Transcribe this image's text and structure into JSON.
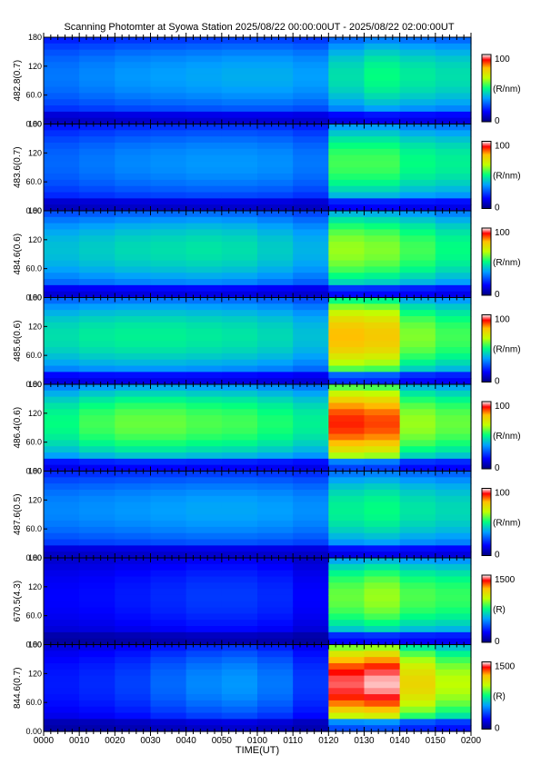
{
  "title": "Scanning Photomter at Syowa Station 2025/08/22 00:00:00UT - 2025/08/22 02:00:00UT",
  "chart_data": {
    "type": "heatmap",
    "xlabel": "TIME(UT)",
    "xticks": [
      "0000",
      "0010",
      "0020",
      "0030",
      "0040",
      "0050",
      "0100",
      "0110",
      "0120",
      "0130",
      "0140",
      "0150",
      "0200"
    ],
    "xlim": [
      0,
      120
    ],
    "yticks": [
      "0.00",
      "60.0",
      "120",
      "180"
    ],
    "ylim": [
      0,
      180
    ],
    "panels": [
      {
        "label": "482.8(0.7)",
        "cbar_max": "100",
        "cbar_min": "0",
        "cbar_unit": "(R/nm)",
        "intensity": [
          0.3,
          0.32,
          0.34,
          0.35,
          0.36,
          0.37,
          0.37,
          0.35,
          0.45,
          0.5,
          0.47,
          0.45
        ]
      },
      {
        "label": "483.6(0.7)",
        "cbar_max": "100",
        "cbar_min": "0",
        "cbar_unit": "(R/nm)",
        "intensity": [
          0.28,
          0.3,
          0.32,
          0.33,
          0.34,
          0.34,
          0.33,
          0.3,
          0.55,
          0.55,
          0.5,
          0.48
        ]
      },
      {
        "label": "484.6(0.6)",
        "cbar_max": "100",
        "cbar_min": "0",
        "cbar_unit": "(R/nm)",
        "intensity": [
          0.4,
          0.42,
          0.44,
          0.45,
          0.46,
          0.45,
          0.42,
          0.38,
          0.62,
          0.6,
          0.55,
          0.5
        ]
      },
      {
        "label": "485.6(0.6)",
        "cbar_max": "100",
        "cbar_min": "0",
        "cbar_unit": "(R/nm)",
        "intensity": [
          0.45,
          0.47,
          0.48,
          0.48,
          0.47,
          0.46,
          0.44,
          0.4,
          0.8,
          0.78,
          0.6,
          0.55
        ]
      },
      {
        "label": "486.4(0.6)",
        "cbar_max": "100",
        "cbar_min": "0",
        "cbar_unit": "(R/nm)",
        "intensity": [
          0.5,
          0.55,
          0.58,
          0.58,
          0.56,
          0.55,
          0.52,
          0.48,
          0.9,
          0.88,
          0.62,
          0.58
        ]
      },
      {
        "label": "487.6(0.5)",
        "cbar_max": "100",
        "cbar_min": "0",
        "cbar_unit": "(R/nm)",
        "intensity": [
          0.32,
          0.33,
          0.34,
          0.35,
          0.36,
          0.36,
          0.35,
          0.33,
          0.48,
          0.5,
          0.46,
          0.44
        ]
      },
      {
        "label": "670.5(4.3)",
        "cbar_max": "1500",
        "cbar_min": "0",
        "cbar_unit": "(R)",
        "intensity": [
          0.15,
          0.16,
          0.18,
          0.2,
          0.22,
          0.22,
          0.2,
          0.15,
          0.58,
          0.62,
          0.56,
          0.54
        ]
      },
      {
        "label": "844.6(0.7)",
        "cbar_max": "1500",
        "cbar_min": "0",
        "cbar_unit": "(R)",
        "intensity": [
          0.18,
          0.2,
          0.23,
          0.28,
          0.32,
          0.34,
          0.3,
          0.22,
          0.95,
          0.98,
          0.75,
          0.65
        ]
      }
    ],
    "grid": false
  }
}
